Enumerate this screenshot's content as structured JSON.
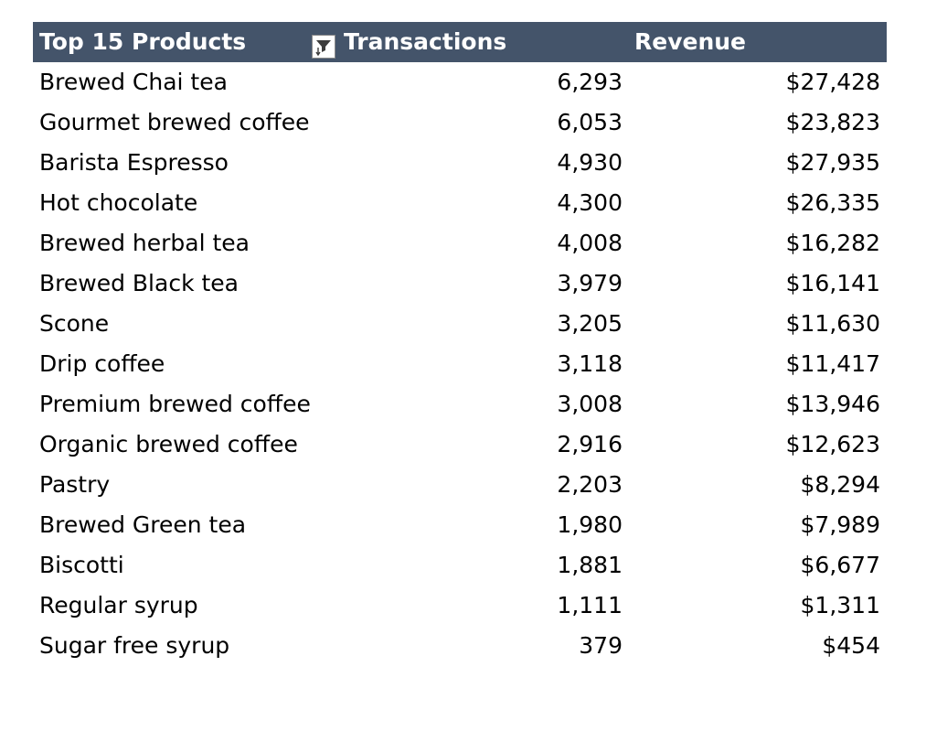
{
  "header": {
    "product_label": "Top 15 Products",
    "transactions_label": "Transactions",
    "revenue_label": "Revenue",
    "filter_icon": "sort-filter-icon",
    "header_color": "#44546a"
  },
  "rows": [
    {
      "product": "Brewed Chai tea",
      "transactions": "6,293",
      "revenue": "$27,428"
    },
    {
      "product": "Gourmet brewed coffee",
      "transactions": "6,053",
      "revenue": "$23,823"
    },
    {
      "product": "Barista Espresso",
      "transactions": "4,930",
      "revenue": "$27,935"
    },
    {
      "product": "Hot chocolate",
      "transactions": "4,300",
      "revenue": "$26,335"
    },
    {
      "product": "Brewed herbal tea",
      "transactions": "4,008",
      "revenue": "$16,282"
    },
    {
      "product": "Brewed Black tea",
      "transactions": "3,979",
      "revenue": "$16,141"
    },
    {
      "product": "Scone",
      "transactions": "3,205",
      "revenue": "$11,630"
    },
    {
      "product": "Drip coffee",
      "transactions": "3,118",
      "revenue": "$11,417"
    },
    {
      "product": "Premium brewed coffee",
      "transactions": "3,008",
      "revenue": "$13,946"
    },
    {
      "product": "Organic brewed coffee",
      "transactions": "2,916",
      "revenue": "$12,623"
    },
    {
      "product": "Pastry",
      "transactions": "2,203",
      "revenue": "$8,294"
    },
    {
      "product": "Brewed Green tea",
      "transactions": "1,980",
      "revenue": "$7,989"
    },
    {
      "product": "Biscotti",
      "transactions": "1,881",
      "revenue": "$6,677"
    },
    {
      "product": "Regular syrup",
      "transactions": "1,111",
      "revenue": "$1,311"
    },
    {
      "product": "Sugar free syrup",
      "transactions": "379",
      "revenue": "$454"
    }
  ]
}
